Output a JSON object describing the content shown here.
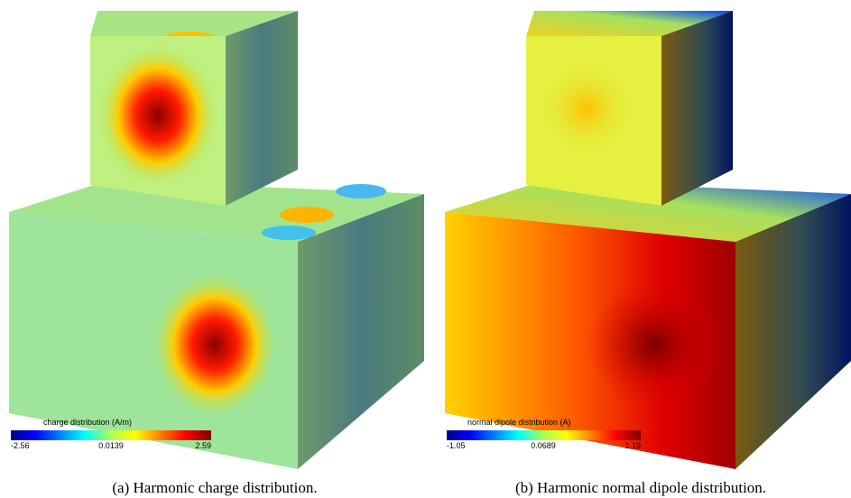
{
  "panels": [
    {
      "colorbar": {
        "title": "charge distribution (A/m)",
        "ticks": [
          "-2.56",
          "0.0139",
          "2.59"
        ]
      },
      "caption": "(a) Harmonic charge distribution."
    },
    {
      "colorbar": {
        "title": "normal dipole distribution (A)",
        "ticks": [
          "-1.05",
          "0.0689",
          "1.19"
        ]
      },
      "caption": "(b) Harmonic normal dipole distribution."
    }
  ]
}
